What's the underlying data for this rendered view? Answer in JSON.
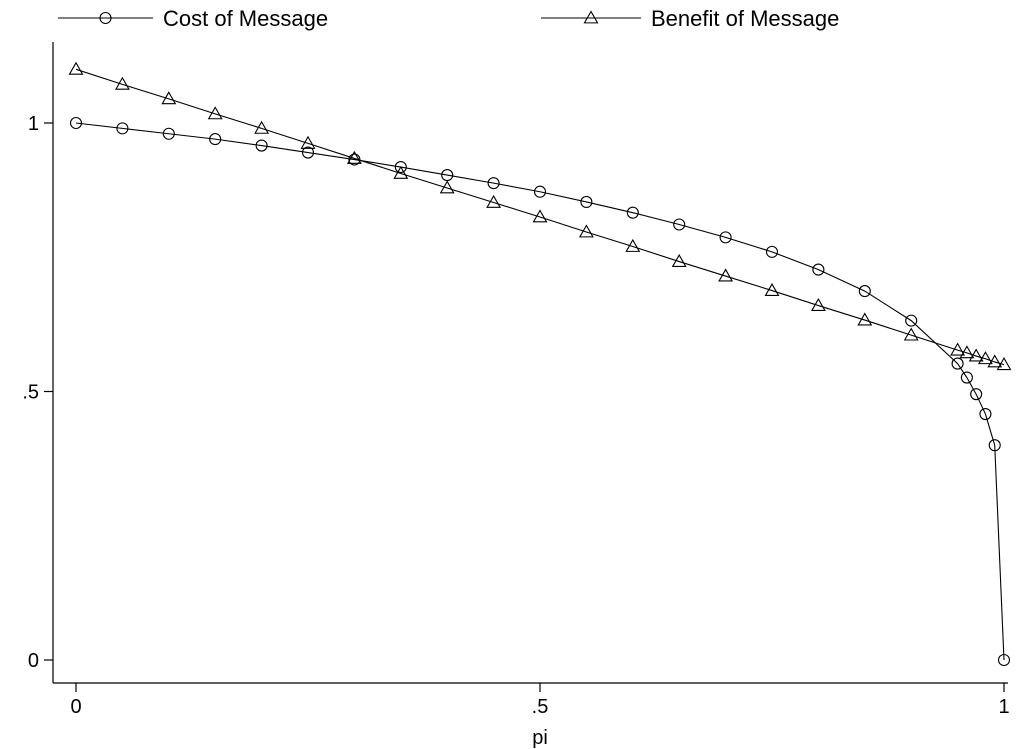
{
  "chart_data": {
    "type": "line",
    "title": "",
    "xlabel": "pi",
    "ylabel": "",
    "xlim": [
      -0.02,
      1.02
    ],
    "ylim": [
      -0.05,
      1.15
    ],
    "xticks": [
      {
        "value": 0,
        "label": "0"
      },
      {
        "value": 0.5,
        "label": ".5"
      },
      {
        "value": 1,
        "label": "1"
      }
    ],
    "yticks": [
      {
        "value": 0,
        "label": "0"
      },
      {
        "value": 0.5,
        "label": ".5"
      },
      {
        "value": 1,
        "label": "1"
      }
    ],
    "grid": false,
    "legend_position": "top",
    "series": [
      {
        "name": "Cost of Message",
        "marker": "circle",
        "points": [
          [
            0,
            1.0
          ],
          [
            0.05,
            0.99
          ],
          [
            0.1,
            0.98
          ],
          [
            0.15,
            0.97
          ],
          [
            0.2,
            0.958
          ],
          [
            0.25,
            0.945
          ],
          [
            0.3,
            0.932
          ],
          [
            0.35,
            0.918
          ],
          [
            0.4,
            0.903
          ],
          [
            0.45,
            0.888
          ],
          [
            0.5,
            0.872
          ],
          [
            0.55,
            0.853
          ],
          [
            0.6,
            0.833
          ],
          [
            0.65,
            0.811
          ],
          [
            0.7,
            0.787
          ],
          [
            0.75,
            0.76
          ],
          [
            0.8,
            0.727
          ],
          [
            0.85,
            0.687
          ],
          [
            0.9,
            0.632
          ],
          [
            0.95,
            0.552
          ],
          [
            0.96,
            0.526
          ],
          [
            0.97,
            0.495
          ],
          [
            0.98,
            0.458
          ],
          [
            0.99,
            0.4
          ],
          [
            1.0,
            0.0
          ]
        ]
      },
      {
        "name": "Benefit of Message",
        "marker": "triangle",
        "points": [
          [
            0,
            1.1
          ],
          [
            0.05,
            1.072
          ],
          [
            0.1,
            1.045
          ],
          [
            0.15,
            1.017
          ],
          [
            0.2,
            0.99
          ],
          [
            0.25,
            0.962
          ],
          [
            0.3,
            0.934
          ],
          [
            0.35,
            0.906
          ],
          [
            0.4,
            0.879
          ],
          [
            0.45,
            0.852
          ],
          [
            0.5,
            0.825
          ],
          [
            0.55,
            0.797
          ],
          [
            0.6,
            0.77
          ],
          [
            0.65,
            0.742
          ],
          [
            0.7,
            0.715
          ],
          [
            0.75,
            0.688
          ],
          [
            0.8,
            0.66
          ],
          [
            0.85,
            0.633
          ],
          [
            0.9,
            0.605
          ],
          [
            0.95,
            0.577
          ],
          [
            0.96,
            0.572
          ],
          [
            0.97,
            0.566
          ],
          [
            0.98,
            0.561
          ],
          [
            0.99,
            0.555
          ],
          [
            1.0,
            0.55
          ]
        ]
      }
    ]
  }
}
